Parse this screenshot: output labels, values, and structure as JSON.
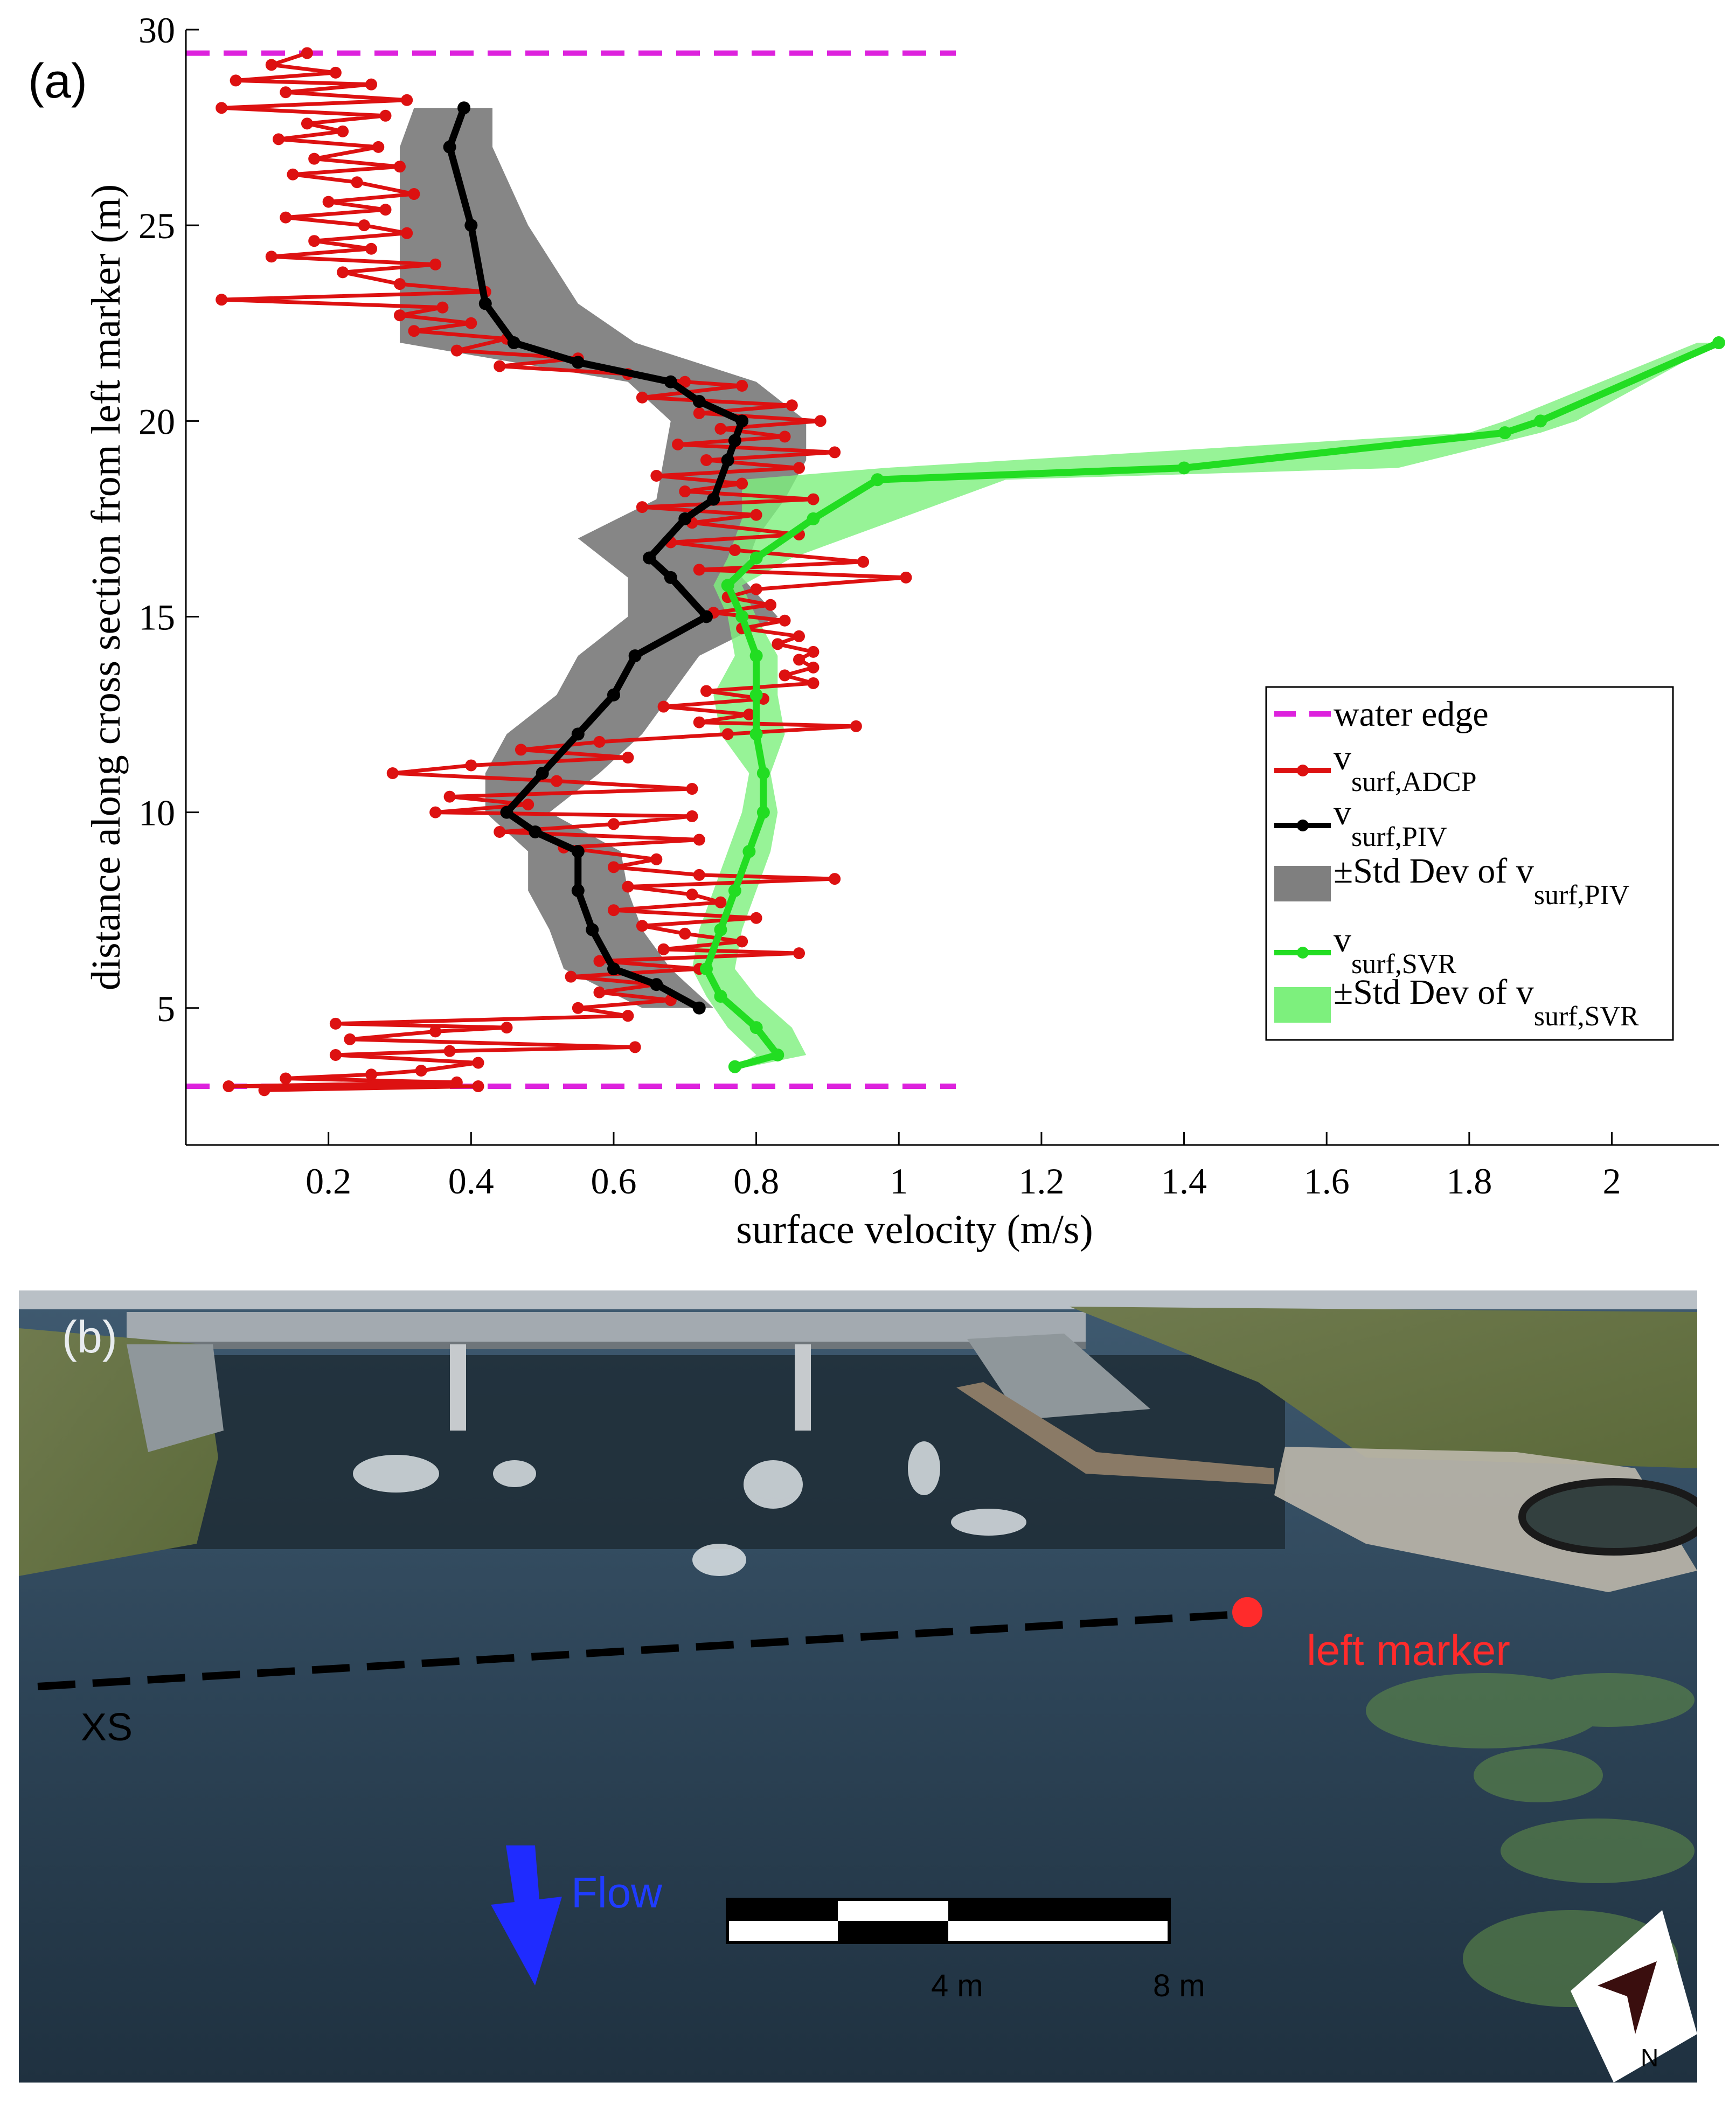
{
  "panel_a_label": "(a)",
  "panel_b_label": "(b)",
  "chart_data": {
    "type": "line",
    "orientation": "y-vs-x",
    "title": "",
    "xlabel": "surface velocity (m/s)",
    "ylabel": "distance along cross section from left marker (m)",
    "xlim": [
      0.0,
      2.15
    ],
    "ylim": [
      1.5,
      30
    ],
    "xticks": [
      "0.2",
      "0.4",
      "0.6",
      "0.8",
      "1",
      "1.2",
      "1.4",
      "1.6",
      "1.8",
      "2"
    ],
    "xtick_values": [
      0.2,
      0.4,
      0.6,
      0.8,
      1.0,
      1.2,
      1.4,
      1.6,
      1.8,
      2.0
    ],
    "yticks": [
      "5",
      "10",
      "15",
      "20",
      "25",
      "30"
    ],
    "ytick_values": [
      5,
      10,
      15,
      20,
      25,
      30
    ],
    "grid": false,
    "legend_position": "right",
    "legend": [
      {
        "kind": "dash",
        "color": "#dd22dd",
        "text": "water edge",
        "sub": ""
      },
      {
        "kind": "line",
        "color": "#dd1111",
        "text": "v",
        "sub": "surf,ADCP"
      },
      {
        "kind": "line",
        "color": "#000000",
        "text": "v",
        "sub": "surf,PIV"
      },
      {
        "kind": "patch",
        "color": "#7f7f7f",
        "text": "±Std Dev of v",
        "sub": "surf,PIV"
      },
      {
        "kind": "line",
        "color": "#22dd22",
        "text": "v",
        "sub": "surf,SVR"
      },
      {
        "kind": "patch",
        "color": "#7df07d",
        "text": "±Std Dev of v",
        "sub": "surf,SVR"
      }
    ],
    "water_edge": {
      "y": [
        29.4,
        3.0
      ],
      "x_range": [
        0.0,
        1.08
      ]
    },
    "series": [
      {
        "name": "v surf,ADCP",
        "color": "#dd1111",
        "points": [
          [
            0.17,
            29.4
          ],
          [
            0.12,
            29.1
          ],
          [
            0.21,
            28.9
          ],
          [
            0.07,
            28.7
          ],
          [
            0.26,
            28.6
          ],
          [
            0.14,
            28.4
          ],
          [
            0.31,
            28.2
          ],
          [
            0.05,
            28.0
          ],
          [
            0.28,
            27.8
          ],
          [
            0.17,
            27.6
          ],
          [
            0.22,
            27.4
          ],
          [
            0.13,
            27.2
          ],
          [
            0.27,
            27.0
          ],
          [
            0.18,
            26.7
          ],
          [
            0.3,
            26.5
          ],
          [
            0.15,
            26.3
          ],
          [
            0.24,
            26.1
          ],
          [
            0.32,
            25.8
          ],
          [
            0.2,
            25.6
          ],
          [
            0.28,
            25.4
          ],
          [
            0.14,
            25.2
          ],
          [
            0.25,
            25.0
          ],
          [
            0.31,
            24.8
          ],
          [
            0.18,
            24.6
          ],
          [
            0.26,
            24.4
          ],
          [
            0.12,
            24.2
          ],
          [
            0.35,
            24.0
          ],
          [
            0.22,
            23.8
          ],
          [
            0.3,
            23.5
          ],
          [
            0.42,
            23.3
          ],
          [
            0.05,
            23.1
          ],
          [
            0.36,
            22.9
          ],
          [
            0.3,
            22.7
          ],
          [
            0.4,
            22.5
          ],
          [
            0.32,
            22.3
          ],
          [
            0.45,
            22.1
          ],
          [
            0.38,
            21.8
          ],
          [
            0.55,
            21.6
          ],
          [
            0.44,
            21.4
          ],
          [
            0.62,
            21.2
          ],
          [
            0.7,
            21.0
          ],
          [
            0.78,
            20.9
          ],
          [
            0.64,
            20.6
          ],
          [
            0.85,
            20.4
          ],
          [
            0.72,
            20.2
          ],
          [
            0.89,
            20.0
          ],
          [
            0.75,
            19.8
          ],
          [
            0.84,
            19.6
          ],
          [
            0.69,
            19.4
          ],
          [
            0.91,
            19.2
          ],
          [
            0.73,
            19.0
          ],
          [
            0.86,
            18.8
          ],
          [
            0.66,
            18.6
          ],
          [
            0.78,
            18.4
          ],
          [
            0.7,
            18.2
          ],
          [
            0.88,
            18.0
          ],
          [
            0.64,
            17.8
          ],
          [
            0.8,
            17.6
          ],
          [
            0.71,
            17.4
          ],
          [
            0.86,
            17.1
          ],
          [
            0.68,
            16.9
          ],
          [
            0.77,
            16.7
          ],
          [
            0.95,
            16.4
          ],
          [
            0.72,
            16.2
          ],
          [
            1.01,
            16.0
          ],
          [
            0.8,
            15.7
          ],
          [
            0.76,
            15.5
          ],
          [
            0.82,
            15.3
          ],
          [
            0.74,
            15.1
          ],
          [
            0.84,
            14.9
          ],
          [
            0.78,
            14.7
          ],
          [
            0.86,
            14.5
          ],
          [
            0.83,
            14.3
          ],
          [
            0.88,
            14.1
          ],
          [
            0.86,
            13.9
          ],
          [
            0.88,
            13.7
          ],
          [
            0.84,
            13.5
          ],
          [
            0.88,
            13.3
          ],
          [
            0.73,
            13.1
          ],
          [
            0.81,
            12.9
          ],
          [
            0.67,
            12.7
          ],
          [
            0.79,
            12.5
          ],
          [
            0.72,
            12.3
          ],
          [
            0.94,
            12.2
          ],
          [
            0.76,
            12.0
          ],
          [
            0.58,
            11.8
          ],
          [
            0.47,
            11.6
          ],
          [
            0.62,
            11.4
          ],
          [
            0.4,
            11.2
          ],
          [
            0.29,
            11.0
          ],
          [
            0.52,
            10.8
          ],
          [
            0.71,
            10.6
          ],
          [
            0.37,
            10.4
          ],
          [
            0.48,
            10.2
          ],
          [
            0.35,
            10.0
          ],
          [
            0.71,
            9.9
          ],
          [
            0.6,
            9.7
          ],
          [
            0.44,
            9.5
          ],
          [
            0.72,
            9.3
          ],
          [
            0.53,
            9.1
          ],
          [
            0.66,
            8.8
          ],
          [
            0.6,
            8.6
          ],
          [
            0.72,
            8.4
          ],
          [
            0.91,
            8.3
          ],
          [
            0.62,
            8.1
          ],
          [
            0.71,
            7.9
          ],
          [
            0.75,
            7.7
          ],
          [
            0.6,
            7.5
          ],
          [
            0.8,
            7.3
          ],
          [
            0.64,
            7.1
          ],
          [
            0.7,
            6.9
          ],
          [
            0.78,
            6.7
          ],
          [
            0.67,
            6.5
          ],
          [
            0.86,
            6.4
          ],
          [
            0.58,
            6.2
          ],
          [
            0.72,
            6.0
          ],
          [
            0.54,
            5.8
          ],
          [
            0.66,
            5.6
          ],
          [
            0.58,
            5.4
          ],
          [
            0.68,
            5.2
          ],
          [
            0.55,
            5.0
          ],
          [
            0.62,
            4.8
          ],
          [
            0.21,
            4.6
          ],
          [
            0.45,
            4.5
          ],
          [
            0.35,
            4.4
          ],
          [
            0.23,
            4.2
          ],
          [
            0.63,
            4.0
          ],
          [
            0.37,
            3.9
          ],
          [
            0.21,
            3.8
          ],
          [
            0.41,
            3.6
          ],
          [
            0.33,
            3.4
          ],
          [
            0.26,
            3.3
          ],
          [
            0.14,
            3.2
          ],
          [
            0.38,
            3.1
          ],
          [
            0.06,
            3.0
          ],
          [
            0.41,
            3.0
          ],
          [
            0.11,
            2.9
          ]
        ]
      },
      {
        "name": "v surf,PIV",
        "color": "#000000",
        "points": [
          [
            0.39,
            28.0
          ],
          [
            0.37,
            27.0
          ],
          [
            0.4,
            25.0
          ],
          [
            0.42,
            23.0
          ],
          [
            0.46,
            22.0
          ],
          [
            0.55,
            21.5
          ],
          [
            0.68,
            21.0
          ],
          [
            0.72,
            20.5
          ],
          [
            0.78,
            20.0
          ],
          [
            0.77,
            19.5
          ],
          [
            0.76,
            19.0
          ],
          [
            0.74,
            18.0
          ],
          [
            0.7,
            17.5
          ],
          [
            0.65,
            16.5
          ],
          [
            0.68,
            16.0
          ],
          [
            0.73,
            15.0
          ],
          [
            0.63,
            14.0
          ],
          [
            0.6,
            13.0
          ],
          [
            0.55,
            12.0
          ],
          [
            0.5,
            11.0
          ],
          [
            0.45,
            10.0
          ],
          [
            0.49,
            9.5
          ],
          [
            0.55,
            9.0
          ],
          [
            0.55,
            8.0
          ],
          [
            0.57,
            7.0
          ],
          [
            0.6,
            6.0
          ],
          [
            0.66,
            5.6
          ],
          [
            0.72,
            5.0
          ]
        ]
      },
      {
        "name": "v surf,SVR",
        "color": "#22dd22",
        "points": [
          [
            0.77,
            3.5
          ],
          [
            0.83,
            3.8
          ],
          [
            0.8,
            4.5
          ],
          [
            0.75,
            5.3
          ],
          [
            0.73,
            6.0
          ],
          [
            0.75,
            7.0
          ],
          [
            0.77,
            8.0
          ],
          [
            0.79,
            9.0
          ],
          [
            0.81,
            10.0
          ],
          [
            0.81,
            11.0
          ],
          [
            0.8,
            12.0
          ],
          [
            0.8,
            13.0
          ],
          [
            0.8,
            14.0
          ],
          [
            0.78,
            15.0
          ],
          [
            0.76,
            15.8
          ],
          [
            0.8,
            16.5
          ],
          [
            0.88,
            17.5
          ],
          [
            0.97,
            18.5
          ],
          [
            1.4,
            18.8
          ],
          [
            1.85,
            19.7
          ],
          [
            1.9,
            20.0
          ],
          [
            2.15,
            22.0
          ]
        ]
      }
    ],
    "bands": [
      {
        "name": "±Std Dev of v surf,PIV",
        "color": "#7f7f7f",
        "rows": [
          [
            28.0,
            0.32,
            0.43
          ],
          [
            27.0,
            0.3,
            0.43
          ],
          [
            25.0,
            0.3,
            0.48
          ],
          [
            23.0,
            0.3,
            0.55
          ],
          [
            22.0,
            0.3,
            0.63
          ],
          [
            21.0,
            0.62,
            0.8
          ],
          [
            20.0,
            0.68,
            0.87
          ],
          [
            19.0,
            0.67,
            0.87
          ],
          [
            18.0,
            0.66,
            0.84
          ],
          [
            17.0,
            0.55,
            0.8
          ],
          [
            16.0,
            0.62,
            0.78
          ],
          [
            15.0,
            0.62,
            0.83
          ],
          [
            14.0,
            0.55,
            0.72
          ],
          [
            13.0,
            0.52,
            0.68
          ],
          [
            12.0,
            0.45,
            0.64
          ],
          [
            11.0,
            0.42,
            0.58
          ],
          [
            10.0,
            0.42,
            0.51
          ],
          [
            9.0,
            0.48,
            0.61
          ],
          [
            8.0,
            0.48,
            0.62
          ],
          [
            7.0,
            0.51,
            0.64
          ],
          [
            6.0,
            0.53,
            0.68
          ],
          [
            5.0,
            0.64,
            0.74
          ]
        ]
      },
      {
        "name": "±Std Dev of v surf,SVR",
        "color": "#7df07d",
        "rows": [
          [
            3.5,
            0.77,
            0.79
          ],
          [
            3.8,
            0.8,
            0.87
          ],
          [
            4.5,
            0.76,
            0.85
          ],
          [
            5.3,
            0.73,
            0.8
          ],
          [
            6.0,
            0.71,
            0.77
          ],
          [
            7.0,
            0.72,
            0.78
          ],
          [
            8.0,
            0.74,
            0.8
          ],
          [
            9.0,
            0.76,
            0.82
          ],
          [
            10.0,
            0.78,
            0.83
          ],
          [
            11.0,
            0.79,
            0.82
          ],
          [
            12.0,
            0.75,
            0.84
          ],
          [
            13.0,
            0.74,
            0.83
          ],
          [
            14.0,
            0.77,
            0.83
          ],
          [
            15.0,
            0.76,
            0.8
          ],
          [
            15.8,
            0.74,
            0.78
          ],
          [
            16.5,
            0.76,
            0.85
          ],
          [
            17.5,
            0.78,
            1.0
          ],
          [
            18.5,
            0.78,
            1.15
          ],
          [
            18.8,
            0.98,
            1.7
          ],
          [
            19.7,
            1.8,
            1.9
          ],
          [
            20.0,
            1.85,
            1.95
          ],
          [
            22.0,
            2.12,
            2.15
          ]
        ]
      }
    ]
  },
  "photo": {
    "xs_label": "XS",
    "left_marker_label": "left marker",
    "flow_label": "Flow",
    "scale_labels": [
      "4 m",
      "8 m"
    ],
    "north_label": "N"
  }
}
